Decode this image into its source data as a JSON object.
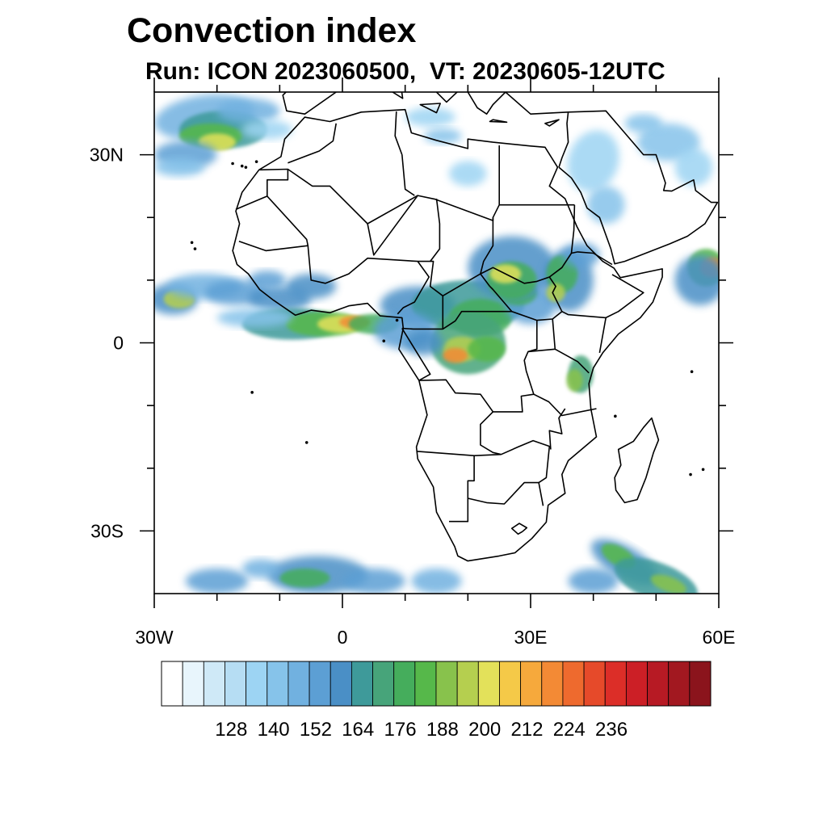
{
  "header": {
    "title": "Convection index",
    "subtitle": "Run: ICON 2023060500,  VT: 20230605-12UTC"
  },
  "map": {
    "extent": {
      "lon": [
        -30,
        60
      ],
      "lat": [
        -40,
        40
      ]
    },
    "lat_ticks": [
      {
        "value": 30,
        "label": "30N"
      },
      {
        "value": 0,
        "label": "0"
      },
      {
        "value": -30,
        "label": "30S"
      }
    ],
    "lon_ticks": [
      {
        "value": -30,
        "label": "30W"
      },
      {
        "value": 0,
        "label": "0"
      },
      {
        "value": 30,
        "label": "30E"
      },
      {
        "value": 60,
        "label": "60E"
      }
    ],
    "minor_lat_ticks": [
      -20,
      -10,
      10,
      20
    ],
    "minor_lon_ticks": [
      -20,
      -10,
      10,
      20,
      40,
      50
    ]
  },
  "colorbar": {
    "colors": [
      "#ffffff",
      "#e8f5fc",
      "#cfe9f7",
      "#b6ddf3",
      "#9dd4f3",
      "#86c3ea",
      "#71b1e0",
      "#5c9fd4",
      "#4a8fc6",
      "#3e9a9a",
      "#47a47a",
      "#45ad5c",
      "#56b84a",
      "#88c24c",
      "#b5cf4f",
      "#e3e15a",
      "#f5c948",
      "#f6a93c",
      "#f38a35",
      "#ee6a2e",
      "#e64a2a",
      "#dc2e28",
      "#cc1f26",
      "#b71a24",
      "#a21820",
      "#8b141c"
    ],
    "labels": [
      "128",
      "140",
      "152",
      "164",
      "176",
      "188",
      "200",
      "212",
      "224",
      "236"
    ],
    "label_boundaries": [
      2,
      4,
      6,
      8,
      10,
      12,
      14,
      16,
      18,
      20
    ]
  },
  "colors": {
    "coastline": "#000000",
    "frame": "#000000"
  }
}
